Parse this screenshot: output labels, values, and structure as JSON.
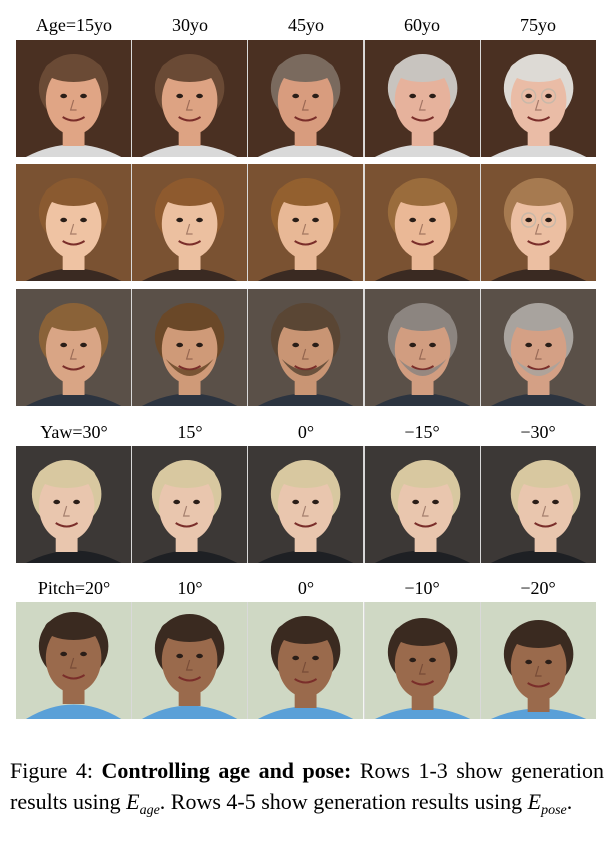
{
  "age_labels": [
    "Age=15yo",
    "30yo",
    "45yo",
    "60yo",
    "75yo"
  ],
  "yaw_labels": [
    "Yaw=30°",
    "15°",
    "0°",
    "−15°",
    "−30°"
  ],
  "pitch_labels": [
    "Pitch=20°",
    "10°",
    "0°",
    "−10°",
    "−20°"
  ],
  "rows": [
    {
      "bg": "#4a3022",
      "skin": [
        "#e0a585",
        "#dda383",
        "#d89c7e",
        "#e6b29c",
        "#eabca6"
      ],
      "hair": [
        "#6a4a35",
        "#6a4a35",
        "#7a6a5e",
        "#c8c4bf",
        "#dddad5"
      ],
      "shirt": "#d9d9d9",
      "glasses": [
        false,
        false,
        false,
        false,
        true
      ]
    },
    {
      "bg": "#7a5232",
      "skin": [
        "#efc3a3",
        "#ecc0a0",
        "#e8b896",
        "#eab896",
        "#ecbfa2"
      ],
      "hair": [
        "#8a5a30",
        "#8e5a2e",
        "#93602f",
        "#9a6c3c",
        "#a67a50"
      ],
      "shirt": "#3a2a22",
      "glasses": [
        false,
        false,
        false,
        false,
        true
      ]
    },
    {
      "bg": "#5a5048",
      "skin": [
        "#d9a585",
        "#cf9a78",
        "#c99574",
        "#d19d80",
        "#d4a085"
      ],
      "hair": [
        "#8a6238",
        "#6a4828",
        "#5a4634",
        "#8c8580",
        "#a8a39e"
      ],
      "shirt": "#2c3440",
      "glasses": [
        false,
        false,
        false,
        false,
        false
      ]
    },
    {
      "bg": "#3c3836",
      "skin": [
        "#e9c6ae",
        "#e9c6ae",
        "#e9c6ae",
        "#e9c6ae",
        "#e9c6ae"
      ],
      "hair": [
        "#d8c8a0",
        "#d8c8a0",
        "#d8c8a0",
        "#d8c8a0",
        "#d8c8a0"
      ],
      "shirt": "#1e2024",
      "glasses": [
        false,
        false,
        false,
        false,
        false
      ]
    },
    {
      "bg": "#cfd8c4",
      "skin": [
        "#9a6a4c",
        "#9a6a4c",
        "#9a6a4c",
        "#9a6a4c",
        "#9a6a4c"
      ],
      "hair": [
        "#3a2a20",
        "#3a2a20",
        "#3a2a20",
        "#3a2a20",
        "#3a2a20"
      ],
      "shirt": "#5aa0d8",
      "glasses": [
        false,
        false,
        false,
        false,
        false
      ]
    }
  ],
  "caption": {
    "prefix": "Figure 4: ",
    "bold": "Controlling age and pose:",
    "text1": " Rows 1-3 show generation results using ",
    "e1": "E",
    "e1_sub": "age",
    "text2": ". Rows 4-5 show generation results using ",
    "e2": "E",
    "e2_sub": "pose",
    "text3": "."
  }
}
